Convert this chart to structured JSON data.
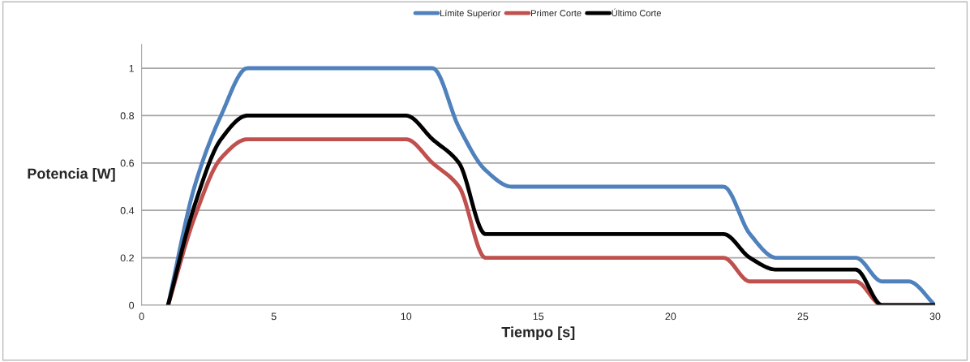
{
  "chart_data": {
    "type": "line",
    "xlabel": "Tiempo [s]",
    "ylabel": "Potencia [W]",
    "x": [
      1,
      2,
      3,
      4,
      5,
      6,
      7,
      8,
      9,
      10,
      11,
      12,
      13,
      14,
      15,
      16,
      17,
      18,
      19,
      20,
      21,
      22,
      23,
      24,
      25,
      26,
      27,
      28,
      29,
      30
    ],
    "series": [
      {
        "name": "Límite Superior",
        "color": "#4f81bd",
        "values": [
          0,
          0.5,
          0.8,
          1,
          1,
          1,
          1,
          1,
          1,
          1,
          1,
          0.75,
          0.57,
          0.5,
          0.5,
          0.5,
          0.5,
          0.5,
          0.5,
          0.5,
          0.5,
          0.5,
          0.3,
          0.2,
          0.2,
          0.2,
          0.2,
          0.1,
          0.1,
          0
        ]
      },
      {
        "name": "Primer Corte",
        "color": "#c0504d",
        "values": [
          0,
          0.37,
          0.62,
          0.7,
          0.7,
          0.7,
          0.7,
          0.7,
          0.7,
          0.7,
          0.6,
          0.5,
          0.2,
          0.2,
          0.2,
          0.2,
          0.2,
          0.2,
          0.2,
          0.2,
          0.2,
          0.2,
          0.1,
          0.1,
          0.1,
          0.1,
          0.1,
          0,
          0,
          0
        ]
      },
      {
        "name": "Último Corte",
        "color": "#000000",
        "values": [
          0,
          0.42,
          0.7,
          0.8,
          0.8,
          0.8,
          0.8,
          0.8,
          0.8,
          0.8,
          0.7,
          0.6,
          0.3,
          0.3,
          0.3,
          0.3,
          0.3,
          0.3,
          0.3,
          0.3,
          0.3,
          0.3,
          0.2,
          0.15,
          0.15,
          0.15,
          0.15,
          0,
          0,
          0
        ]
      }
    ],
    "xlim": [
      0,
      30
    ],
    "xticks": [
      0,
      5,
      10,
      15,
      20,
      25,
      30
    ],
    "ylim": [
      0,
      1.1
    ],
    "yticks": [
      0,
      0.2,
      0.4,
      0.6,
      0.8,
      1
    ],
    "grid": "y",
    "legend": "top",
    "marker": "none",
    "line_style": "solid"
  }
}
